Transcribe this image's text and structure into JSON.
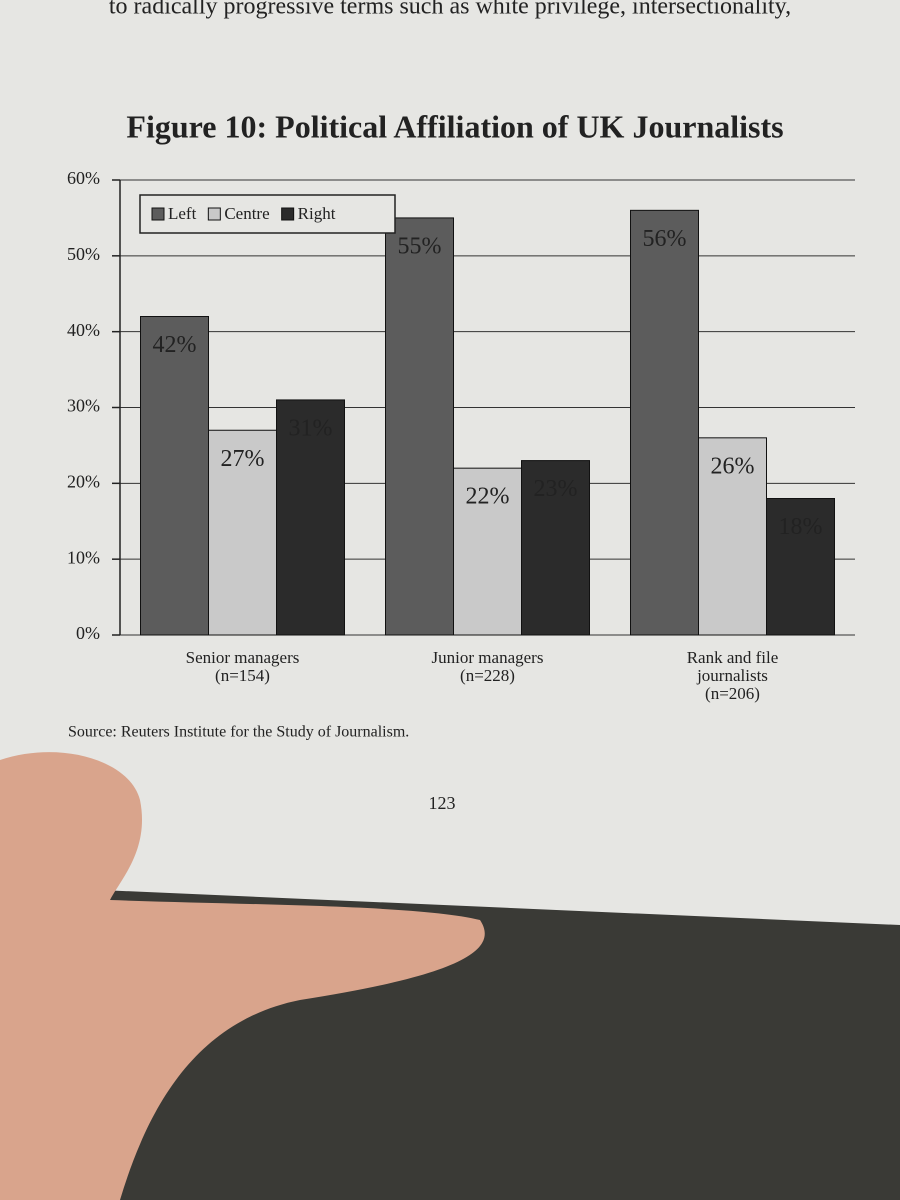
{
  "page_text": {
    "top_line": "to radically progressive terms such as white privilege, intersectionality,",
    "page_number": "123"
  },
  "chart_data": {
    "type": "bar",
    "title": "Figure 10: Political Affiliation of UK Journalists",
    "categories": [
      "Senior managers",
      "Junior managers",
      "Rank and file journalists"
    ],
    "category_notes": [
      "(n=154)",
      "(n=228)",
      "(n=206)"
    ],
    "series": [
      {
        "name": "Left",
        "color": "#5c5c5c",
        "values": [
          42,
          55,
          56
        ],
        "value_labels": [
          "42%",
          "55%",
          "56%"
        ]
      },
      {
        "name": "Centre",
        "color": "#c9c9c9",
        "values": [
          27,
          22,
          26
        ],
        "value_labels": [
          "27%",
          "22%",
          "26%"
        ]
      },
      {
        "name": "Right",
        "color": "#2b2b2b",
        "values": [
          31,
          23,
          18
        ],
        "value_labels": [
          "31%",
          "23%",
          "18%"
        ]
      }
    ],
    "ylim": [
      0,
      60
    ],
    "yticks": [
      {
        "value": 0,
        "label": "0%"
      },
      {
        "value": 10,
        "label": "10%"
      },
      {
        "value": 20,
        "label": "20%"
      },
      {
        "value": 30,
        "label": "30%"
      },
      {
        "value": 40,
        "label": "40%"
      },
      {
        "value": 50,
        "label": "50%"
      },
      {
        "value": 60,
        "label": "60%"
      }
    ],
    "grid": true,
    "legend": "upper left",
    "source": "Source: Reuters Institute for the Study of Journalism."
  }
}
